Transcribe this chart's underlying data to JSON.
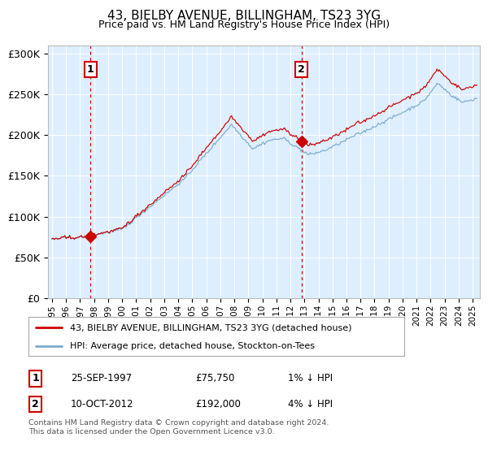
{
  "title": "43, BIELBY AVENUE, BILLINGHAM, TS23 3YG",
  "subtitle": "Price paid vs. HM Land Registry's House Price Index (HPI)",
  "legend_line1": "43, BIELBY AVENUE, BILLINGHAM, TS23 3YG (detached house)",
  "legend_line2": "HPI: Average price, detached house, Stockton-on-Tees",
  "marker1_date": "25-SEP-1997",
  "marker1_price_str": "£75,750",
  "marker1_hpi": "1% ↓ HPI",
  "marker2_date": "10-OCT-2012",
  "marker2_price_str": "£192,000",
  "marker2_hpi": "4% ↓ HPI",
  "footnote_line1": "Contains HM Land Registry data © Crown copyright and database right 2024.",
  "footnote_line2": "This data is licensed under the Open Government Licence v3.0.",
  "red_color": "#cc0000",
  "blue_color": "#7aabcc",
  "bg_color": "#ddeeff",
  "grid_color": "#ffffff",
  "ylim": [
    0,
    310000
  ],
  "yticks": [
    0,
    50000,
    100000,
    150000,
    200000,
    250000,
    300000
  ],
  "ytick_labels": [
    "£0",
    "£50K",
    "£100K",
    "£150K",
    "£200K",
    "£250K",
    "£300K"
  ],
  "xtick_years": [
    1995,
    1996,
    1997,
    1998,
    1999,
    2000,
    2001,
    2002,
    2003,
    2004,
    2005,
    2006,
    2007,
    2008,
    2009,
    2010,
    2011,
    2012,
    2013,
    2014,
    2015,
    2016,
    2017,
    2018,
    2019,
    2020,
    2021,
    2022,
    2023,
    2024,
    2025
  ],
  "sale1_year": 1997.73,
  "sale1_price": 75750,
  "sale2_year": 2012.78,
  "sale2_price": 192000,
  "xlim_left": 1994.7,
  "xlim_right": 2025.5
}
